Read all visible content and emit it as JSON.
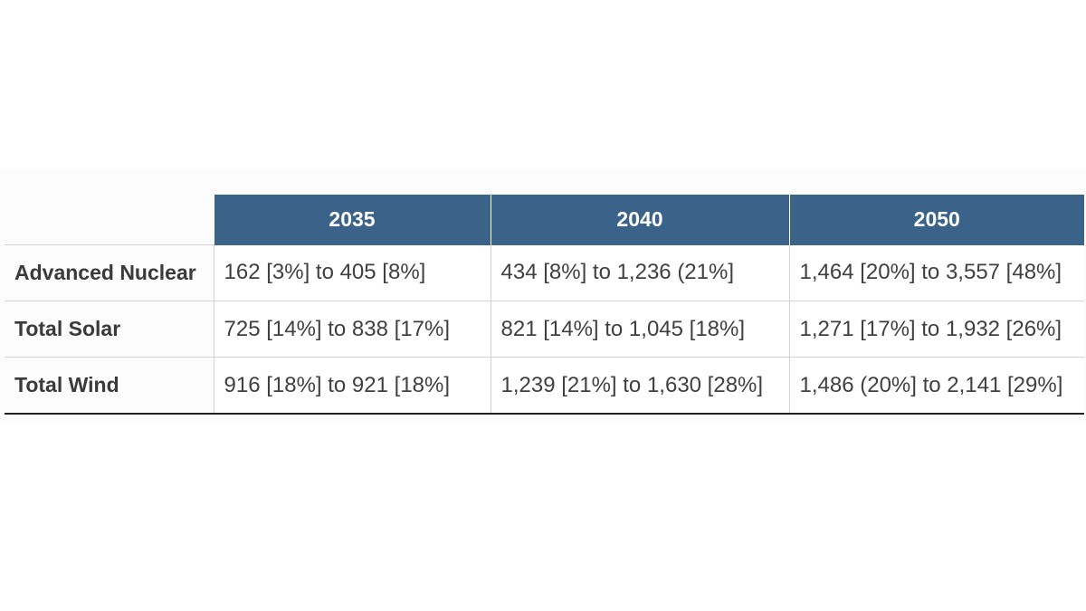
{
  "chart_data": {
    "type": "table",
    "columns": [
      "2035",
      "2040",
      "2050"
    ],
    "rows": [
      {
        "label": "Advanced Nuclear",
        "cells": [
          "162 [3%] to 405 [8%]",
          "434 [8%] to 1,236 (21%]",
          "1,464 [20%] to 3,557 [48%]"
        ]
      },
      {
        "label": "Total Solar",
        "cells": [
          "725 [14%] to 838 [17%]",
          "821 [14%] to 1,045 [18%]",
          "1,271 [17%] to 1,932 [26%]"
        ]
      },
      {
        "label": "Total Wind",
        "cells": [
          "916 [18%] to 921 [18%]",
          "1,239 [21%] to 1,630 [28%]",
          "1,486 (20%] to 2,141 [29%]"
        ]
      }
    ],
    "colors": {
      "header_bg": "#3b6389",
      "header_text": "#ffffff",
      "cell_text": "#404040",
      "grid": "#d4d4d4"
    }
  }
}
